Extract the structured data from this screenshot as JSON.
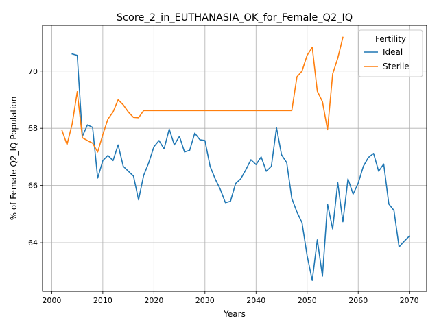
{
  "chart_data": {
    "type": "line",
    "title": "Score_2_in_EUTHANASIA_OK_for_Female_Q2_IQ",
    "xlabel": "Years",
    "ylabel": "% of Female Q2_IQ Population",
    "xlim": [
      1998.2,
      2073.4
    ],
    "ylim": [
      62.3,
      71.6
    ],
    "xticks": [
      2000,
      2010,
      2020,
      2030,
      2040,
      2050,
      2060,
      2070
    ],
    "yticks": [
      64,
      66,
      68,
      70
    ],
    "grid": true,
    "legend": {
      "title": "Fertility",
      "placement": "top-right"
    },
    "series": [
      {
        "name": "Ideal",
        "color": "#1f77b4",
        "x": [
          2004,
          2005,
          2006,
          2007,
          2008,
          2009,
          2010,
          2011,
          2012,
          2013,
          2014,
          2015,
          2016,
          2017,
          2018,
          2019,
          2020,
          2021,
          2022,
          2023,
          2024,
          2025,
          2026,
          2027,
          2028,
          2029,
          2030,
          2031,
          2032,
          2033,
          2034,
          2035,
          2036,
          2037,
          2038,
          2039,
          2040,
          2041,
          2042,
          2043,
          2044,
          2045,
          2046,
          2047,
          2048,
          2049,
          2050,
          2051,
          2052,
          2053,
          2054,
          2055,
          2056,
          2057,
          2058,
          2059,
          2060,
          2061,
          2062,
          2063,
          2064,
          2065,
          2066,
          2067,
          2068,
          2069,
          2070
        ],
        "y": [
          70.6,
          70.55,
          67.72,
          68.12,
          68.03,
          66.26,
          66.87,
          67.05,
          66.87,
          67.42,
          66.67,
          66.5,
          66.33,
          65.5,
          66.35,
          66.8,
          67.35,
          67.57,
          67.28,
          67.97,
          67.42,
          67.72,
          67.17,
          67.23,
          67.83,
          67.6,
          67.57,
          66.67,
          66.23,
          65.87,
          65.4,
          65.45,
          66.07,
          66.23,
          66.55,
          66.9,
          66.73,
          67.0,
          66.5,
          66.67,
          68.02,
          67.07,
          66.8,
          65.55,
          65.07,
          64.7,
          63.55,
          62.68,
          64.1,
          62.83,
          65.35,
          64.48,
          66.1,
          64.73,
          66.23,
          65.7,
          66.08,
          66.67,
          66.98,
          67.12,
          66.5,
          66.75,
          65.35,
          65.13,
          63.85,
          64.05,
          64.23
        ]
      },
      {
        "name": "Sterile",
        "color": "#ff7f0e",
        "x": [
          2002,
          2003,
          2004,
          2005,
          2006,
          2007,
          2008,
          2009,
          2010,
          2011,
          2012,
          2013,
          2014,
          2015,
          2016,
          2017,
          2018,
          2019,
          2020,
          2021,
          2022,
          2023,
          2024,
          2025,
          2026,
          2027,
          2028,
          2029,
          2030,
          2031,
          2032,
          2033,
          2034,
          2035,
          2036,
          2037,
          2038,
          2039,
          2040,
          2041,
          2042,
          2043,
          2044,
          2045,
          2046,
          2047,
          2048,
          2049,
          2050,
          2051,
          2052,
          2053,
          2054,
          2055,
          2056,
          2057
        ],
        "y": [
          67.93,
          67.43,
          68.15,
          69.28,
          67.67,
          67.57,
          67.48,
          67.17,
          67.78,
          68.32,
          68.57,
          69.0,
          68.82,
          68.57,
          68.38,
          68.37,
          68.62,
          68.62,
          68.62,
          68.62,
          68.62,
          68.62,
          68.62,
          68.62,
          68.62,
          68.62,
          68.62,
          68.62,
          68.62,
          68.62,
          68.62,
          68.62,
          68.62,
          68.62,
          68.62,
          68.62,
          68.62,
          68.62,
          68.62,
          68.62,
          68.62,
          68.62,
          68.62,
          68.62,
          68.62,
          68.62,
          69.8,
          70.0,
          70.55,
          70.83,
          69.3,
          68.93,
          67.95,
          69.9,
          70.45,
          71.18
        ]
      }
    ]
  }
}
